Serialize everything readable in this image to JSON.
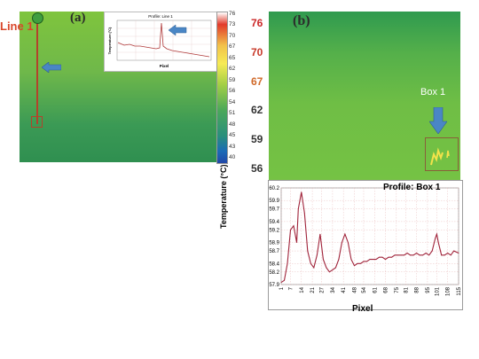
{
  "panel_a": {
    "label": "(a)",
    "line_label": "Line 1",
    "colorbar_ticks": [
      "76",
      "73",
      "70",
      "67",
      "65",
      "62",
      "59",
      "56",
      "54",
      "51",
      "48",
      "45",
      "43",
      "40"
    ],
    "inset": {
      "title": "Profile: Line 1",
      "ylabel": "Temperature (°C)",
      "xlabel": "Pixel"
    }
  },
  "panel_b": {
    "label": "(b)",
    "colorbar_ticks": [
      "76",
      "70",
      "67",
      "62",
      "59",
      "56"
    ],
    "box_label": "Box 1",
    "accent_arrow_color": "#4a86c5"
  },
  "chart_data": {
    "type": "line",
    "title": "Profile: Box 1",
    "xlabel": "Pixel",
    "ylabel": "Temperature (°C)",
    "x_ticks": [
      "1",
      "7",
      "14",
      "21",
      "27",
      "34",
      "41",
      "48",
      "54",
      "61",
      "68",
      "75",
      "81",
      "88",
      "95",
      "101",
      "108",
      "115"
    ],
    "y_ticks": [
      "57.9",
      "58.2",
      "58.4",
      "58.7",
      "58.9",
      "59.2",
      "59.4",
      "59.7",
      "59.9",
      "60.2"
    ],
    "ylim": [
      57.9,
      60.2
    ],
    "xlim": [
      1,
      115
    ],
    "grid": true,
    "series": [
      {
        "color": "#a0233a",
        "x": [
          1,
          3,
          5,
          7,
          9,
          11,
          12,
          14,
          16,
          18,
          20,
          22,
          24,
          26,
          28,
          30,
          32,
          34,
          36,
          38,
          40,
          42,
          44,
          46,
          48,
          50,
          52,
          54,
          56,
          58,
          60,
          62,
          64,
          66,
          68,
          70,
          72,
          74,
          76,
          78,
          80,
          82,
          84,
          86,
          88,
          90,
          92,
          94,
          96,
          98,
          100,
          101,
          102,
          104,
          106,
          108,
          110,
          112,
          115
        ],
        "y": [
          57.95,
          58.0,
          58.4,
          59.2,
          59.3,
          58.9,
          59.7,
          60.1,
          59.6,
          58.7,
          58.4,
          58.3,
          58.6,
          59.1,
          58.5,
          58.3,
          58.2,
          58.25,
          58.3,
          58.5,
          58.9,
          59.1,
          58.9,
          58.5,
          58.35,
          58.4,
          58.4,
          58.45,
          58.45,
          58.5,
          58.5,
          58.5,
          58.55,
          58.55,
          58.5,
          58.55,
          58.55,
          58.6,
          58.6,
          58.6,
          58.6,
          58.65,
          58.6,
          58.6,
          58.65,
          58.6,
          58.6,
          58.65,
          58.6,
          58.7,
          59.0,
          59.1,
          58.9,
          58.6,
          58.6,
          58.65,
          58.6,
          58.7,
          58.65
        ]
      }
    ]
  }
}
